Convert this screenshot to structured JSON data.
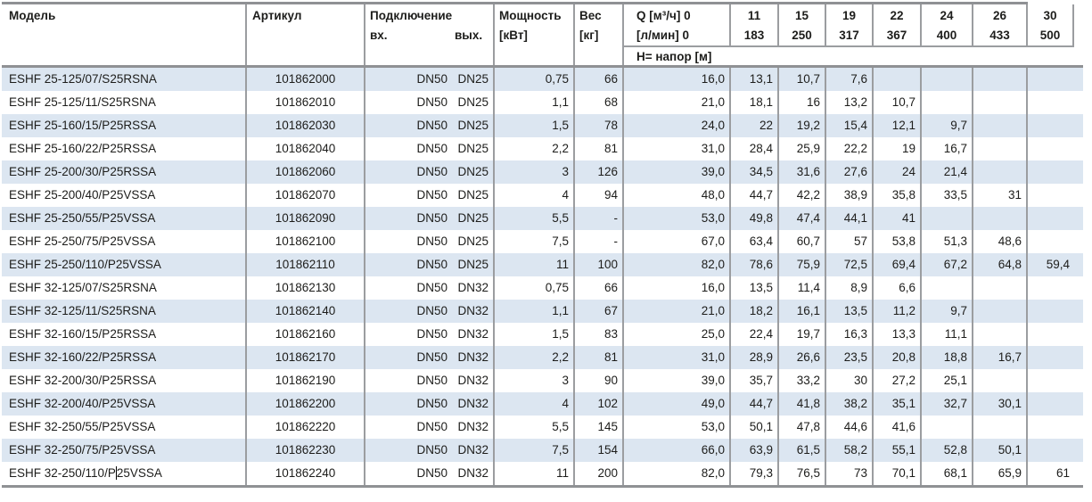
{
  "table": {
    "headers": {
      "model": "Модель",
      "article": "Артикул",
      "connection": "Подключение",
      "conn_in": "вх.",
      "conn_out": "вых.",
      "power_l1": "Мощность",
      "power_l2": "[кВт]",
      "weight_l1": "Вес",
      "weight_l2": "[кг]",
      "q_l1": "Q [м³/ч] 0",
      "q_l2": "[л/мин] 0",
      "head_row": "H= напор [м]",
      "flow_cols": [
        {
          "m3h": "11",
          "lmin": "183"
        },
        {
          "m3h": "15",
          "lmin": "250"
        },
        {
          "m3h": "19",
          "lmin": "317"
        },
        {
          "m3h": "22",
          "lmin": "367"
        },
        {
          "m3h": "24",
          "lmin": "400"
        },
        {
          "m3h": "26",
          "lmin": "433"
        },
        {
          "m3h": "30",
          "lmin": "500"
        }
      ]
    },
    "rows": [
      {
        "model": "ESHF 25-125/07/S25RSNA",
        "article": "101862000",
        "in": "DN50",
        "out": "DN25",
        "power": "0,75",
        "weight": "66",
        "h": [
          "16,0",
          "13,1",
          "10,7",
          "7,6",
          "",
          "",
          "",
          ""
        ]
      },
      {
        "model": "ESHF 25-125/11/S25RSNA",
        "article": "101862010",
        "in": "DN50",
        "out": "DN25",
        "power": "1,1",
        "weight": "68",
        "h": [
          "21,0",
          "18,1",
          "16",
          "13,2",
          "10,7",
          "",
          "",
          ""
        ]
      },
      {
        "model": "ESHF 25-160/15/P25RSSA",
        "article": "101862030",
        "in": "DN50",
        "out": "DN25",
        "power": "1,5",
        "weight": "78",
        "h": [
          "24,0",
          "22",
          "19,2",
          "15,4",
          "12,1",
          "9,7",
          "",
          ""
        ]
      },
      {
        "model": "ESHF 25-160/22/P25RSSA",
        "article": "101862040",
        "in": "DN50",
        "out": "DN25",
        "power": "2,2",
        "weight": "81",
        "h": [
          "31,0",
          "28,4",
          "25,9",
          "22,2",
          "19",
          "16,7",
          "",
          ""
        ]
      },
      {
        "model": "ESHF 25-200/30/P25RSSA",
        "article": "101862060",
        "in": "DN50",
        "out": "DN25",
        "power": "3",
        "weight": "126",
        "h": [
          "39,0",
          "34,5",
          "31,6",
          "27,6",
          "24",
          "21,4",
          "",
          ""
        ]
      },
      {
        "model": "ESHF 25-200/40/P25VSSA",
        "article": "101862070",
        "in": "DN50",
        "out": "DN25",
        "power": "4",
        "weight": "94",
        "h": [
          "48,0",
          "44,7",
          "42,2",
          "38,9",
          "35,8",
          "33,5",
          "31",
          ""
        ]
      },
      {
        "model": "ESHF 25-250/55/P25VSSA",
        "article": "101862090",
        "in": "DN50",
        "out": "DN25",
        "power": "5,5",
        "weight": "-",
        "h": [
          "53,0",
          "49,8",
          "47,4",
          "44,1",
          "41",
          "",
          "",
          ""
        ]
      },
      {
        "model": "ESHF 25-250/75/P25VSSA",
        "article": "101862100",
        "in": "DN50",
        "out": "DN25",
        "power": "7,5",
        "weight": "-",
        "h": [
          "67,0",
          "63,4",
          "60,7",
          "57",
          "53,8",
          "51,3",
          "48,6",
          ""
        ]
      },
      {
        "model": "ESHF 25-250/110/P25VSSA",
        "article": "101862110",
        "in": "DN50",
        "out": "DN25",
        "power": "11",
        "weight": "100",
        "h": [
          "82,0",
          "78,6",
          "75,9",
          "72,5",
          "69,4",
          "67,2",
          "64,8",
          "59,4"
        ]
      },
      {
        "model": "ESHF 32-125/07/S25RSNA",
        "article": "101862130",
        "in": "DN50",
        "out": "DN32",
        "power": "0,75",
        "weight": "66",
        "h": [
          "16,0",
          "13,5",
          "11,4",
          "8,9",
          "6,6",
          "",
          "",
          ""
        ]
      },
      {
        "model": "ESHF 32-125/11/S25RSNA",
        "article": "101862140",
        "in": "DN50",
        "out": "DN32",
        "power": "1,1",
        "weight": "67",
        "h": [
          "21,0",
          "18,2",
          "16,1",
          "13,5",
          "11,2",
          "9,7",
          "",
          ""
        ]
      },
      {
        "model": "ESHF 32-160/15/P25RSSA",
        "article": "101862160",
        "in": "DN50",
        "out": "DN32",
        "power": "1,5",
        "weight": "83",
        "h": [
          "25,0",
          "22,4",
          "19,7",
          "16,3",
          "13,3",
          "11,1",
          "",
          ""
        ]
      },
      {
        "model": "ESHF 32-160/22/P25RSSA",
        "article": "101862170",
        "in": "DN50",
        "out": "DN32",
        "power": "2,2",
        "weight": "81",
        "h": [
          "31,0",
          "28,9",
          "26,6",
          "23,5",
          "20,8",
          "18,8",
          "16,7",
          ""
        ]
      },
      {
        "model": "ESHF 32-200/30/P25RSSA",
        "article": "101862190",
        "in": "DN50",
        "out": "DN32",
        "power": "3",
        "weight": "90",
        "h": [
          "39,0",
          "35,7",
          "33,2",
          "30",
          "27,2",
          "25,1",
          "",
          ""
        ]
      },
      {
        "model": "ESHF 32-200/40/P25VSSA",
        "article": "101862200",
        "in": "DN50",
        "out": "DN32",
        "power": "4",
        "weight": "102",
        "h": [
          "49,0",
          "44,7",
          "41,8",
          "38,2",
          "35,1",
          "32,7",
          "30,1",
          ""
        ]
      },
      {
        "model": "ESHF 32-250/55/P25VSSA",
        "article": "101862220",
        "in": "DN50",
        "out": "DN32",
        "power": "5,5",
        "weight": "145",
        "h": [
          "53,0",
          "50,1",
          "47,8",
          "44,6",
          "41,6",
          "",
          "",
          ""
        ]
      },
      {
        "model": "ESHF 32-250/75/P25VSSA",
        "article": "101862230",
        "in": "DN50",
        "out": "DN32",
        "power": "7,5",
        "weight": "154",
        "h": [
          "66,0",
          "63,9",
          "61,5",
          "58,2",
          "55,1",
          "52,8",
          "50,1",
          ""
        ]
      },
      {
        "model": "ESHF 32-250/110/P25VSSA",
        "article": "101862240",
        "in": "DN50",
        "out": "DN32",
        "power": "11",
        "weight": "200",
        "h": [
          "82,0",
          "79,3",
          "76,5",
          "73",
          "70,1",
          "68,1",
          "65,9",
          "61"
        ],
        "caret_at": 17
      }
    ]
  }
}
